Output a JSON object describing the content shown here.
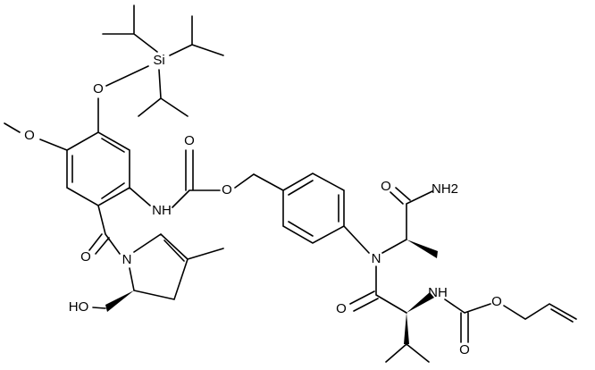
{
  "atoms": [
    {
      "label": "Si"
    },
    {
      "label": "O"
    },
    {
      "label": "O"
    },
    {
      "label": "O"
    },
    {
      "label": "NH"
    },
    {
      "label": "O"
    },
    {
      "label": "O"
    },
    {
      "label": "NH2"
    },
    {
      "label": "N"
    },
    {
      "label": "O"
    },
    {
      "label": "NH"
    },
    {
      "label": "O"
    },
    {
      "label": "O"
    },
    {
      "label": "O"
    },
    {
      "label": "N"
    },
    {
      "label": "HO"
    }
  ]
}
